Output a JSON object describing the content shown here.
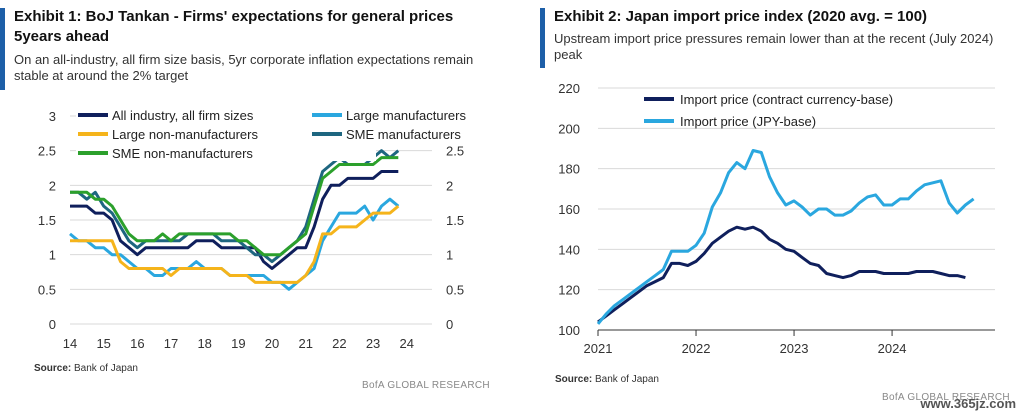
{
  "exhibit1": {
    "title": "Exhibit 1: BoJ Tankan - Firms' expectations for general prices 5years ahead",
    "subtitle": "On an all-industry, all firm size basis, 5yr corporate inflation expectations remain stable at around the 2% target",
    "source_label": "Source:",
    "source_text": "Bank of Japan",
    "brand": "BofA GLOBAL RESEARCH"
  },
  "exhibit2": {
    "title": "Exhibit 2: Japan import price index (2020 avg. = 100)",
    "subtitle": "Upstream import price pressures remain lower than at the recent (July 2024) peak",
    "source_label": "Source:",
    "source_text": "Bank of Japan",
    "brand": "BofA GLOBAL RESEARCH"
  },
  "watermark": "www.365jz.com",
  "chart_data": [
    {
      "type": "line",
      "title": "Exhibit 1: BoJ Tankan - Firms' expectations for general prices 5years ahead",
      "x_start": 14,
      "x_step": 0.25,
      "x_ticks": [
        "14",
        "15",
        "16",
        "17",
        "18",
        "19",
        "20",
        "21",
        "22",
        "23",
        "24"
      ],
      "ylim": [
        0,
        3
      ],
      "y_ticks_left": [
        "0",
        "0.5",
        "1",
        "1.5",
        "2",
        "2.5",
        "3"
      ],
      "y_ticks_right": [
        "0",
        "0.5",
        "1",
        "1.5",
        "2",
        "2.5",
        "3"
      ],
      "grid": "horizontal",
      "legend": "top",
      "series": [
        {
          "name": "All industry, all firm sizes",
          "color": "#0f1f5c",
          "values": [
            1.7,
            1.7,
            1.7,
            1.6,
            1.6,
            1.5,
            1.2,
            1.1,
            1.0,
            1.1,
            1.1,
            1.1,
            1.1,
            1.1,
            1.1,
            1.2,
            1.2,
            1.2,
            1.1,
            1.1,
            1.1,
            1.1,
            1.1,
            0.9,
            0.8,
            0.9,
            1.0,
            1.1,
            1.1,
            1.4,
            1.8,
            2.0,
            2.0,
            2.1,
            2.1,
            2.1,
            2.1,
            2.2,
            2.2,
            2.2
          ]
        },
        {
          "name": "Large manufacturers",
          "color": "#2aa7df",
          "values": [
            1.3,
            1.2,
            1.2,
            1.1,
            1.1,
            1.0,
            1.0,
            0.9,
            0.8,
            0.8,
            0.7,
            0.7,
            0.8,
            0.8,
            0.8,
            0.9,
            0.8,
            0.8,
            0.8,
            0.7,
            0.7,
            0.7,
            0.7,
            0.7,
            0.6,
            0.6,
            0.5,
            0.6,
            0.7,
            0.8,
            1.2,
            1.4,
            1.6,
            1.6,
            1.6,
            1.7,
            1.5,
            1.7,
            1.8,
            1.7
          ]
        },
        {
          "name": "Large non-manufacturers",
          "color": "#f5b41b",
          "values": [
            1.2,
            1.2,
            1.2,
            1.2,
            1.2,
            1.2,
            0.9,
            0.8,
            0.8,
            0.8,
            0.8,
            0.8,
            0.7,
            0.8,
            0.8,
            0.8,
            0.8,
            0.8,
            0.8,
            0.7,
            0.7,
            0.7,
            0.6,
            0.6,
            0.6,
            0.6,
            0.6,
            0.6,
            0.7,
            0.9,
            1.3,
            1.3,
            1.4,
            1.4,
            1.4,
            1.5,
            1.6,
            1.6,
            1.6,
            1.7
          ]
        },
        {
          "name": "SME manufacturers",
          "color": "#1e6680",
          "values": [
            1.9,
            1.9,
            1.8,
            1.9,
            1.7,
            1.6,
            1.4,
            1.2,
            1.1,
            1.2,
            1.2,
            1.2,
            1.2,
            1.2,
            1.3,
            1.3,
            1.3,
            1.3,
            1.2,
            1.2,
            1.2,
            1.1,
            1.0,
            1.0,
            0.9,
            1.0,
            1.1,
            1.2,
            1.4,
            1.8,
            2.2,
            2.3,
            2.4,
            2.3,
            2.3,
            2.3,
            2.4,
            2.5,
            2.4,
            2.5
          ]
        },
        {
          "name": "SME non-manufacturers",
          "color": "#2ca02c",
          "values": [
            1.9,
            1.9,
            1.9,
            1.8,
            1.8,
            1.7,
            1.5,
            1.3,
            1.2,
            1.2,
            1.2,
            1.3,
            1.2,
            1.3,
            1.3,
            1.3,
            1.3,
            1.3,
            1.3,
            1.3,
            1.2,
            1.2,
            1.1,
            1.0,
            1.0,
            1.0,
            1.1,
            1.2,
            1.3,
            1.7,
            2.1,
            2.2,
            2.3,
            2.3,
            2.3,
            2.3,
            2.3,
            2.4,
            2.4,
            2.4
          ]
        }
      ]
    },
    {
      "type": "line",
      "title": "Exhibit 2: Japan import price index (2020 avg. = 100)",
      "x_start": 2021.0,
      "x_step": 0.0833,
      "x_ticks": [
        "2021",
        "2022",
        "2023",
        "2024"
      ],
      "x_tick_values": [
        2021,
        2022,
        2023,
        2024
      ],
      "xlim": [
        2021,
        2025.05
      ],
      "ylim": [
        100,
        220
      ],
      "y_ticks": [
        "100",
        "120",
        "140",
        "160",
        "180",
        "200",
        "220"
      ],
      "grid": "horizontal",
      "legend": "top",
      "series": [
        {
          "name": "Import price (contract currency-base)",
          "color": "#0f1f5c",
          "values": [
            104,
            107,
            110,
            113,
            116,
            119,
            122,
            124,
            126,
            133,
            133,
            132,
            134,
            138,
            143,
            146,
            149,
            151,
            150,
            151,
            149,
            145,
            143,
            140,
            139,
            136,
            133,
            132,
            128,
            127,
            126,
            127,
            129,
            129,
            129,
            128,
            128,
            128,
            128,
            129,
            129,
            129,
            128,
            127,
            127,
            126
          ]
        },
        {
          "name": "Import price (JPY-base)",
          "color": "#2aa7df",
          "values": [
            103,
            108,
            112,
            115,
            118,
            121,
            124,
            127,
            130,
            139,
            139,
            139,
            142,
            148,
            161,
            168,
            178,
            183,
            180,
            189,
            188,
            176,
            168,
            162,
            164,
            161,
            157,
            160,
            160,
            157,
            157,
            159,
            163,
            166,
            167,
            162,
            162,
            165,
            165,
            169,
            172,
            173,
            174,
            163,
            158,
            162,
            165
          ]
        }
      ]
    }
  ]
}
